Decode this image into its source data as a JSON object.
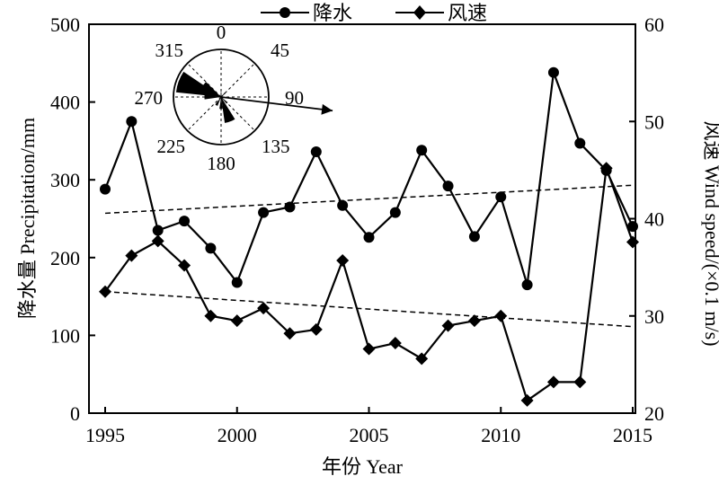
{
  "chart_data": {
    "type": "line",
    "x": [
      1995,
      1996,
      1997,
      1998,
      1999,
      2000,
      2001,
      2002,
      2003,
      2004,
      2005,
      2006,
      2007,
      2008,
      2009,
      2010,
      2011,
      2012,
      2013,
      2014,
      2015
    ],
    "xlabel": "年份 Year",
    "ylabel_left": "降水量 Precipitation/mm",
    "ylabel_right": "风速 Wind speed/(×0.1 m/s)",
    "xlim": [
      1995,
      2015
    ],
    "ylim_left": [
      0,
      500
    ],
    "ylim_right": [
      20,
      60
    ],
    "x_ticks": [
      "1995",
      "2000",
      "2005",
      "2010",
      "2015"
    ],
    "y_left_ticks": [
      "0",
      "100",
      "200",
      "300",
      "400",
      "500"
    ],
    "y_right_ticks": [
      "20",
      "30",
      "40",
      "50",
      "60"
    ],
    "series": [
      {
        "name": "降水",
        "axis": "left",
        "marker": "circle",
        "values": [
          288,
          375,
          235,
          247,
          212,
          168,
          258,
          265,
          336,
          267,
          226,
          258,
          338,
          292,
          227,
          278,
          165,
          438,
          347,
          312,
          240
        ]
      },
      {
        "name": "风速",
        "axis": "right",
        "marker": "diamond",
        "values": [
          32.5,
          36.2,
          37.7,
          35.2,
          30.0,
          29.5,
          30.8,
          28.2,
          28.6,
          35.7,
          26.6,
          27.2,
          25.6,
          29.0,
          29.5,
          30.0,
          21.3,
          23.2,
          23.2,
          45.2,
          37.6
        ]
      }
    ],
    "trendlines": [
      {
        "axis": "left",
        "x": [
          1995,
          2015
        ],
        "y": [
          257,
          293
        ]
      },
      {
        "axis": "right",
        "x": [
          1995,
          2015
        ],
        "y": [
          32.5,
          28.9
        ]
      }
    ],
    "legend_position": "top",
    "wind_rose": {
      "labels": [
        "0",
        "45",
        "90",
        "135",
        "180",
        "225",
        "270",
        "315"
      ],
      "petals": [
        {
          "direction": 290,
          "length": 0.95,
          "width": 14
        },
        {
          "direction": 305,
          "length": 0.45,
          "width": 10
        },
        {
          "direction": 270,
          "length": 0.35,
          "width": 8
        },
        {
          "direction": 160,
          "length": 0.55,
          "width": 12
        },
        {
          "direction": 180,
          "length": 0.25,
          "width": 8
        },
        {
          "direction": 210,
          "length": 0.2,
          "width": 8
        },
        {
          "direction": 135,
          "length": 0.18,
          "width": 6
        },
        {
          "direction": 45,
          "length": 0.12,
          "width": 6
        },
        {
          "direction": 0,
          "length": 0.1,
          "width": 6
        }
      ],
      "arrow_direction": 97
    }
  }
}
